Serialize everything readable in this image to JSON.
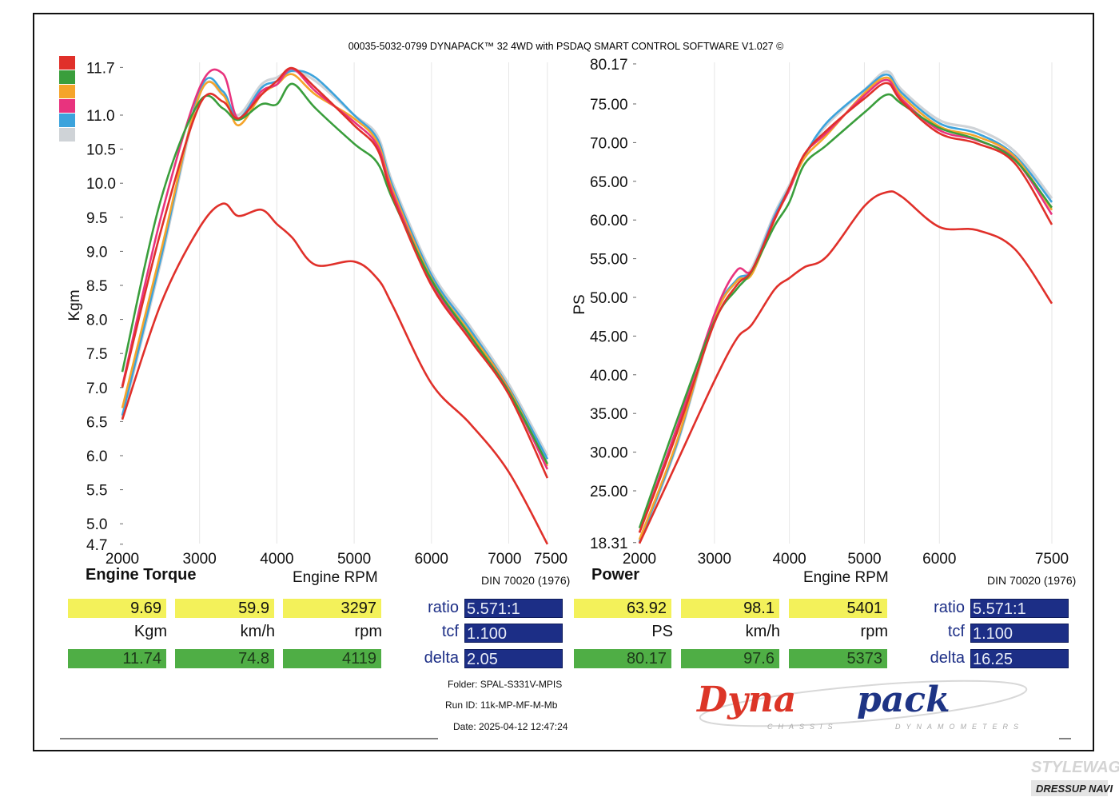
{
  "chart_data": [
    {
      "type": "line",
      "title": "Engine Torque",
      "xlabel": "Engine RPM",
      "ylabel": "Kgm",
      "standard": "DIN 70020 (1976)",
      "xlim": [
        2000,
        7500
      ],
      "ylim": [
        4.7,
        11.7
      ],
      "x_ticks": [
        "2000",
        "3000",
        "4000",
        "5000",
        "6000",
        "7000",
        "7500"
      ],
      "y_ticks": [
        "11.7",
        "11.0",
        "10.5",
        "10.0",
        "9.5",
        "9.0",
        "8.5",
        "8.0",
        "7.5",
        "7.0",
        "6.5",
        "6.0",
        "5.5",
        "5.0",
        "4.7"
      ],
      "grid": "vertical",
      "x": [
        2000,
        2500,
        3000,
        3300,
        3500,
        3800,
        4000,
        4200,
        4500,
        5000,
        5300,
        5500,
        6000,
        6500,
        7000,
        7500
      ],
      "series": [
        {
          "name": "run-gray",
          "color": "#cfd3d7",
          "values": [
            6.55,
            8.85,
            11.3,
            11.3,
            11.0,
            11.45,
            11.55,
            11.65,
            11.5,
            11.0,
            10.7,
            10.0,
            8.7,
            7.9,
            7.05,
            6.0
          ]
        },
        {
          "name": "run-blue",
          "color": "#3ca3dc",
          "values": [
            6.59,
            8.9,
            11.35,
            11.35,
            10.95,
            11.4,
            11.5,
            11.65,
            11.55,
            11.0,
            10.65,
            9.95,
            8.65,
            7.85,
            7.0,
            5.95
          ]
        },
        {
          "name": "run-orange",
          "color": "#f5a42a",
          "values": [
            6.7,
            9.0,
            11.3,
            11.3,
            10.85,
            11.3,
            11.45,
            11.6,
            11.3,
            10.95,
            10.6,
            9.9,
            8.6,
            7.8,
            6.98,
            5.85
          ]
        },
        {
          "name": "run-pink",
          "color": "#e8337e",
          "values": [
            7.02,
            9.5,
            11.4,
            11.61,
            10.95,
            11.35,
            11.45,
            11.68,
            11.35,
            10.9,
            10.55,
            9.85,
            8.55,
            7.75,
            6.95,
            5.8
          ]
        },
        {
          "name": "run-green",
          "color": "#3a9e3c",
          "values": [
            7.23,
            9.76,
            11.2,
            11.1,
            10.93,
            11.16,
            11.16,
            11.46,
            11.1,
            10.58,
            10.3,
            9.76,
            8.58,
            7.76,
            6.94,
            5.88
          ]
        },
        {
          "name": "run-red",
          "color": "#e0302a",
          "values": [
            7.0,
            9.3,
            11.15,
            11.2,
            10.95,
            11.3,
            11.5,
            11.69,
            11.4,
            10.85,
            10.5,
            9.8,
            8.5,
            7.7,
            6.9,
            5.67
          ]
        },
        {
          "name": "run-red-low",
          "color": "#e0302a",
          "values": [
            6.53,
            8.23,
            9.35,
            9.7,
            9.52,
            9.61,
            9.4,
            9.2,
            8.8,
            8.85,
            8.6,
            8.2,
            7.06,
            6.47,
            5.76,
            4.7
          ]
        }
      ]
    },
    {
      "type": "line",
      "title": "Power",
      "xlabel": "Engine RPM",
      "ylabel": "PS",
      "standard": "DIN 70020 (1976)",
      "xlim": [
        2000,
        7500
      ],
      "ylim": [
        18.31,
        80.17
      ],
      "x_ticks": [
        "2000",
        "3000",
        "4000",
        "5000",
        "6000",
        "7500"
      ],
      "y_ticks": [
        "80.17",
        "75.00",
        "70.00",
        "65.00",
        "60.00",
        "55.00",
        "50.00",
        "45.00",
        "40.00",
        "35.00",
        "30.00",
        "25.00",
        "18.31"
      ],
      "grid": "vertical",
      "x": [
        2000,
        2500,
        3000,
        3300,
        3500,
        3800,
        4000,
        4200,
        4500,
        5000,
        5300,
        5500,
        6000,
        6500,
        7000,
        7500
      ],
      "series": [
        {
          "name": "run-gray",
          "color": "#cfd3d7",
          "values": [
            18.3,
            30.9,
            47.3,
            52.1,
            53.8,
            60.8,
            64.5,
            68.3,
            72.3,
            76.8,
            79.2,
            76.8,
            72.9,
            71.7,
            68.9,
            62.8
          ]
        },
        {
          "name": "run-blue",
          "color": "#3ca3dc",
          "values": [
            18.4,
            31.1,
            47.5,
            52.3,
            53.5,
            60.5,
            64.2,
            68.3,
            72.6,
            76.8,
            78.8,
            76.4,
            72.5,
            71.2,
            68.4,
            62.3
          ]
        },
        {
          "name": "run-orange",
          "color": "#f5a42a",
          "values": [
            18.7,
            31.4,
            47.3,
            52.1,
            53.0,
            60.0,
            63.9,
            68.0,
            71.0,
            76.4,
            78.4,
            76.0,
            72.1,
            70.8,
            68.2,
            61.3
          ]
        },
        {
          "name": "run-pink",
          "color": "#e8337e",
          "values": [
            19.6,
            33.2,
            47.8,
            53.5,
            53.5,
            60.2,
            63.9,
            68.5,
            71.3,
            76.1,
            78.1,
            75.6,
            71.6,
            70.3,
            67.9,
            60.7
          ]
        },
        {
          "name": "run-green",
          "color": "#3a9e3c",
          "values": [
            20.2,
            34.1,
            46.9,
            51.1,
            53.4,
            59.2,
            62.3,
            67.2,
            69.7,
            73.9,
            76.2,
            75.0,
            71.9,
            70.4,
            67.8,
            61.6
          ]
        },
        {
          "name": "run-red",
          "color": "#e0302a",
          "values": [
            19.6,
            32.5,
            46.7,
            51.6,
            53.5,
            60.0,
            64.2,
            68.5,
            71.6,
            75.7,
            77.7,
            75.3,
            71.2,
            69.9,
            67.4,
            59.4
          ]
        },
        {
          "name": "run-red-low",
          "color": "#e0302a",
          "values": [
            18.2,
            28.7,
            39.2,
            44.7,
            46.5,
            51.0,
            52.5,
            53.9,
            55.3,
            61.8,
            63.6,
            63.0,
            59.1,
            58.7,
            56.3,
            49.2
          ]
        }
      ]
    }
  ],
  "header": "00035-5032-0799 DYNAPACK™ 32 4WD with PSDAQ SMART CONTROL SOFTWARE V1.027 ©",
  "legend_colors": [
    "#e0302a",
    "#3a9e3c",
    "#f5a42a",
    "#e8337e",
    "#3ca3dc",
    "#cfd3d7"
  ],
  "torque_panel": {
    "cursor": {
      "value": "9.69",
      "speed": "59.9",
      "rpm": "3297"
    },
    "units": {
      "value": "Kgm",
      "speed": "km/h",
      "rpm": "rpm"
    },
    "peak": {
      "value": "11.74",
      "speed": "74.8",
      "rpm": "4119"
    },
    "ratio_label": "ratio",
    "ratio": "5.571:1",
    "tcf_label": "tcf",
    "tcf": "1.100",
    "delta_label": "delta",
    "delta": "2.05"
  },
  "power_panel": {
    "cursor": {
      "value": "63.92",
      "speed": "98.1",
      "rpm": "5401"
    },
    "units": {
      "value": "PS",
      "speed": "km/h",
      "rpm": "rpm"
    },
    "peak": {
      "value": "80.17",
      "speed": "97.6",
      "rpm": "5373"
    },
    "ratio_label": "ratio",
    "ratio": "5.571:1",
    "tcf_label": "tcf",
    "tcf": "1.100",
    "delta_label": "delta",
    "delta": "16.25"
  },
  "run_info": {
    "folder_label": "Folder:",
    "folder": "SPAL-S331V-MPIS",
    "run_label": "Run ID:",
    "run": "11k-MP-MF-M-Mb",
    "date_label": "Date:",
    "date": "2025-04-12 12:47:24"
  },
  "logo": {
    "brand_a": "Dyna",
    "brand_b": "pack",
    "tagline_a": "CHASSIS",
    "tagline_b": "DYNAMOMETERS"
  },
  "watermark": {
    "line1": "STYLEWAGON",
    "line2": "DRESSUP NAVI"
  }
}
